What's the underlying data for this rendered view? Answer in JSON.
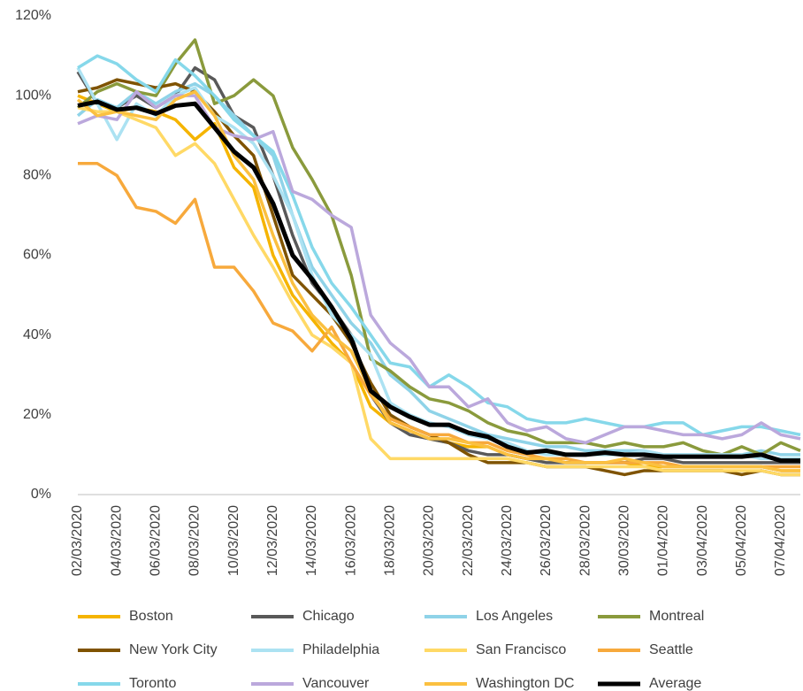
{
  "chart_data": {
    "type": "line",
    "categories": [
      "02/03/2020",
      null,
      "04/03/2020",
      null,
      "06/03/2020",
      null,
      "08/03/2020",
      null,
      "10/03/2020",
      null,
      "12/03/2020",
      null,
      "14/03/2020",
      null,
      "16/03/2020",
      null,
      "18/03/2020",
      null,
      "20/03/2020",
      null,
      "22/03/2020",
      null,
      "24/03/2020",
      null,
      "26/03/2020",
      null,
      "28/03/2020",
      null,
      "30/03/2020",
      null,
      "01/04/2020",
      null,
      "03/04/2020",
      null,
      "05/04/2020",
      null,
      "07/04/2020",
      null
    ],
    "ylim": [
      0,
      120
    ],
    "yticks": [
      {
        "value": 0,
        "label": "0%"
      },
      {
        "value": 20,
        "label": "20%"
      },
      {
        "value": 40,
        "label": "40%"
      },
      {
        "value": 60,
        "label": "60%"
      },
      {
        "value": 80,
        "label": "80%"
      },
      {
        "value": 100,
        "label": "100%"
      },
      {
        "value": 120,
        "label": "120%"
      }
    ],
    "grid": false,
    "legend": "bottom",
    "series": [
      {
        "name": "Boston",
        "color": "#f5b400",
        "values": [
          100,
          98,
          96,
          97,
          96,
          94,
          89,
          93,
          82,
          77,
          60,
          50,
          44,
          38,
          33,
          22,
          18,
          16,
          14,
          13,
          12,
          12,
          10,
          9,
          9,
          8,
          8,
          8,
          8,
          7,
          7,
          7,
          7,
          7,
          7,
          7,
          6,
          6
        ]
      },
      {
        "name": "Chicago",
        "color": "#595959",
        "values": [
          106,
          98,
          97,
          100,
          97,
          100,
          107,
          104,
          95,
          92,
          80,
          65,
          53,
          47,
          40,
          25,
          18,
          15,
          14,
          13,
          11,
          10,
          10,
          9,
          8,
          8,
          8,
          8,
          8,
          9,
          9,
          8,
          8,
          8,
          8,
          8,
          8,
          8
        ]
      },
      {
        "name": "Los Angeles",
        "color": "#8fd3e8",
        "values": [
          95,
          99,
          97,
          101,
          98,
          101,
          103,
          100,
          95,
          90,
          85,
          70,
          57,
          50,
          43,
          38,
          30,
          26,
          21,
          19,
          17,
          15,
          14,
          13,
          12,
          12,
          11,
          11,
          11,
          11,
          10,
          10,
          10,
          10,
          10,
          11,
          10,
          10
        ]
      },
      {
        "name": "Montreal",
        "color": "#8a9a3c",
        "values": [
          97,
          101,
          103,
          101,
          100,
          108,
          114,
          98,
          100,
          104,
          100,
          87,
          79,
          70,
          55,
          34,
          31,
          27,
          24,
          23,
          21,
          18,
          16,
          15,
          13,
          13,
          13,
          12,
          13,
          12,
          12,
          13,
          11,
          10,
          12,
          10,
          13,
          11
        ]
      },
      {
        "name": "New York City",
        "color": "#7f5300",
        "values": [
          101,
          102,
          104,
          103,
          102,
          103,
          101,
          96,
          90,
          85,
          70,
          55,
          50,
          45,
          38,
          28,
          20,
          17,
          15,
          13,
          10,
          8,
          8,
          8,
          7,
          7,
          7,
          6,
          5,
          6,
          6,
          6,
          6,
          6,
          5,
          6,
          5,
          5
        ]
      },
      {
        "name": "Philadelphia",
        "color": "#ace2f2",
        "values": [
          107,
          98,
          89,
          98,
          95,
          100,
          102,
          95,
          92,
          88,
          80,
          70,
          55,
          45,
          40,
          35,
          23,
          20,
          18,
          17,
          15,
          14,
          13,
          11,
          10,
          10,
          10,
          10,
          10,
          11,
          10,
          10,
          10,
          10,
          10,
          9,
          9,
          9
        ]
      },
      {
        "name": "San Francisco",
        "color": "#ffd966",
        "values": [
          97,
          96,
          96,
          94,
          92,
          85,
          88,
          83,
          74,
          65,
          57,
          48,
          40,
          37,
          33,
          14,
          9,
          9,
          9,
          9,
          9,
          9,
          9,
          8,
          7,
          7,
          7,
          7,
          7,
          7,
          6,
          6,
          6,
          6,
          6,
          6,
          5,
          5
        ]
      },
      {
        "name": "Seattle",
        "color": "#f7a93c",
        "values": [
          83,
          83,
          80,
          72,
          71,
          68,
          74,
          57,
          57,
          51,
          43,
          41,
          36,
          42,
          33,
          25,
          19,
          17,
          15,
          15,
          13,
          13,
          11,
          10,
          9,
          9,
          8,
          8,
          8,
          8,
          8,
          7,
          7,
          7,
          7,
          7,
          7,
          7
        ]
      },
      {
        "name": "Toronto",
        "color": "#86d8ea",
        "values": [
          107,
          110,
          108,
          104,
          101,
          109,
          105,
          100,
          94,
          90,
          86,
          75,
          62,
          53,
          47,
          40,
          33,
          32,
          27,
          30,
          27,
          23,
          22,
          19,
          18,
          18,
          19,
          18,
          17,
          17,
          18,
          18,
          15,
          16,
          17,
          17,
          16,
          15
        ]
      },
      {
        "name": "Vancouver",
        "color": "#bba8dc",
        "values": [
          93,
          95,
          94,
          101,
          97,
          100,
          100,
          92,
          90,
          89,
          91,
          76,
          74,
          70,
          67,
          45,
          38,
          34,
          27,
          27,
          22,
          24,
          18,
          16,
          17,
          14,
          13,
          15,
          17,
          17,
          16,
          15,
          15,
          14,
          15,
          18,
          15,
          14
        ]
      },
      {
        "name": "Washington DC",
        "color": "#fbc040",
        "values": [
          99,
          95,
          96,
          95,
          94,
          99,
          101,
          95,
          85,
          79,
          65,
          53,
          45,
          40,
          36,
          26,
          18,
          16,
          14,
          14,
          13,
          12,
          10,
          9,
          9,
          8,
          8,
          8,
          9,
          8,
          7,
          7,
          7,
          7,
          7,
          7,
          6,
          6
        ]
      },
      {
        "name": "Average",
        "color": "#000000",
        "values": [
          97.5,
          98.5,
          96.5,
          97,
          95.5,
          97.5,
          98,
          92,
          86,
          82,
          73,
          60,
          54,
          47,
          39,
          26,
          22,
          19.5,
          17.5,
          17.5,
          15.5,
          14.5,
          12,
          10.5,
          11,
          10,
          10,
          10.5,
          10,
          10,
          9.5,
          9.5,
          9.5,
          9.5,
          9.5,
          10,
          8.5,
          8.5
        ]
      }
    ]
  }
}
